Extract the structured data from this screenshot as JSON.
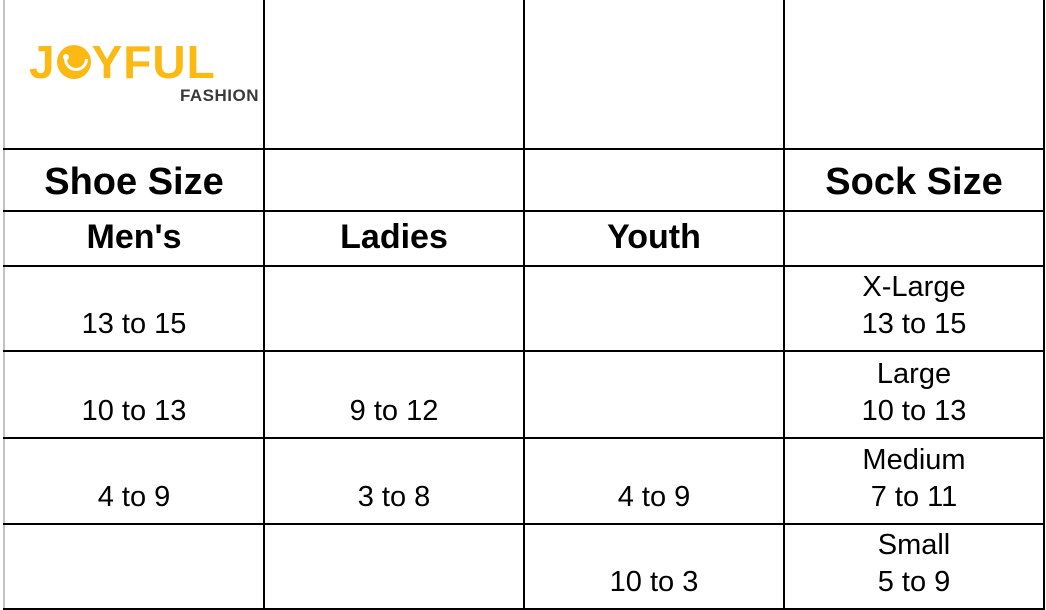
{
  "logo": {
    "brand": "JOYFUL",
    "sub": "FASHION",
    "brand_color": "#fdb913"
  },
  "headers": {
    "shoe_size": "Shoe Size",
    "sock_size": "Sock Size",
    "mens": "Men's",
    "ladies": "Ladies",
    "youth": "Youth"
  },
  "rows": [
    {
      "mens": "13 to 15",
      "ladies": "",
      "youth": "",
      "sock_label": "X-Large",
      "sock_range": "13 to 15"
    },
    {
      "mens": "10 to 13",
      "ladies": "9 to 12",
      "youth": "",
      "sock_label": "Large",
      "sock_range": "10 to 13"
    },
    {
      "mens": "4 to 9",
      "ladies": "3 to 8",
      "youth": "4 to 9",
      "sock_label": "Medium",
      "sock_range": "7 to 11"
    },
    {
      "mens": "",
      "ladies": "",
      "youth": "10 to 3",
      "sock_label": "Small",
      "sock_range": "5 to 9"
    }
  ]
}
